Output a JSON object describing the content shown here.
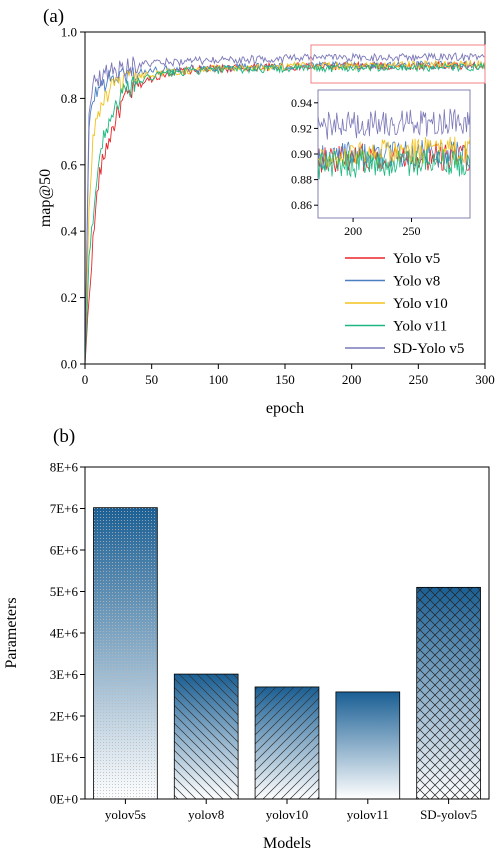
{
  "chart_data": [
    {
      "type": "line",
      "panel_label": "(a)",
      "xlabel": "epoch",
      "ylabel": "map@50",
      "xlim": [
        0,
        300
      ],
      "ylim": [
        0.0,
        1.0
      ],
      "x_ticks": [
        "0",
        "50",
        "100",
        "150",
        "200",
        "250",
        "300"
      ],
      "y_ticks": [
        "0.0",
        "0.2",
        "0.4",
        "0.6",
        "0.8",
        "1.0"
      ],
      "legend_position": "bottom-right",
      "series": [
        {
          "name": "Yolo v5",
          "color": "#e8262b",
          "x": [
            0,
            5,
            10,
            15,
            20,
            25,
            30,
            40,
            50,
            60,
            80,
            100,
            120,
            150,
            170,
            200,
            250,
            300
          ],
          "y": [
            0.0,
            0.32,
            0.55,
            0.64,
            0.7,
            0.76,
            0.8,
            0.84,
            0.86,
            0.875,
            0.885,
            0.89,
            0.893,
            0.895,
            0.896,
            0.897,
            0.898,
            0.898
          ]
        },
        {
          "name": "Yolo v8",
          "color": "#4a7fc1",
          "x": [
            0,
            3,
            6,
            10,
            15,
            20,
            30,
            40,
            50,
            60,
            80,
            100,
            120,
            150,
            170,
            200,
            250,
            300
          ],
          "y": [
            0.0,
            0.7,
            0.8,
            0.83,
            0.85,
            0.86,
            0.87,
            0.878,
            0.882,
            0.885,
            0.89,
            0.893,
            0.895,
            0.896,
            0.897,
            0.899,
            0.9,
            0.9
          ]
        },
        {
          "name": "Yolo v10",
          "color": "#f2c21b",
          "x": [
            0,
            3,
            6,
            10,
            15,
            20,
            30,
            40,
            50,
            60,
            80,
            100,
            120,
            150,
            170,
            200,
            250,
            300
          ],
          "y": [
            0.0,
            0.45,
            0.68,
            0.76,
            0.8,
            0.83,
            0.85,
            0.865,
            0.873,
            0.878,
            0.885,
            0.89,
            0.893,
            0.896,
            0.898,
            0.9,
            0.902,
            0.903
          ]
        },
        {
          "name": "Yolo v11",
          "color": "#1cb880",
          "x": [
            0,
            3,
            6,
            10,
            15,
            20,
            30,
            40,
            50,
            60,
            80,
            100,
            120,
            150,
            170,
            200,
            250,
            300
          ],
          "y": [
            0.0,
            0.3,
            0.45,
            0.6,
            0.7,
            0.76,
            0.82,
            0.85,
            0.865,
            0.875,
            0.882,
            0.886,
            0.888,
            0.89,
            0.891,
            0.892,
            0.893,
            0.893
          ]
        },
        {
          "name": "SD-Yolo v5",
          "color": "#7b78b8",
          "x": [
            0,
            3,
            6,
            10,
            15,
            20,
            30,
            40,
            50,
            60,
            80,
            100,
            120,
            150,
            170,
            200,
            250,
            300
          ],
          "y": [
            0.0,
            0.78,
            0.84,
            0.86,
            0.875,
            0.885,
            0.893,
            0.9,
            0.905,
            0.908,
            0.912,
            0.915,
            0.917,
            0.92,
            0.922,
            0.923,
            0.924,
            0.925
          ]
        }
      ],
      "inset": {
        "xlim": [
          170,
          300
        ],
        "ylim": [
          0.85,
          0.95
        ],
        "x_ticks": [
          "200",
          "250"
        ],
        "y_ticks": [
          "0.86",
          "0.88",
          "0.90",
          "0.92",
          "0.94"
        ]
      }
    },
    {
      "type": "bar",
      "panel_label": "(b)",
      "xlabel": "Models",
      "ylabel": "Parameters",
      "ylim": [
        0,
        8000000
      ],
      "y_ticks": [
        "0E+0",
        "1E+6",
        "2E+6",
        "3E+6",
        "4E+6",
        "5E+6",
        "6E+6",
        "7E+6",
        "8E+6"
      ],
      "categories": [
        "yolov5s",
        "yolov8",
        "yolov10",
        "yolov11",
        "SD-yolov5"
      ],
      "values": [
        7020000,
        3010000,
        2700000,
        2580000,
        5100000
      ],
      "patterns": [
        "dots",
        "back-diagonal",
        "forward-diagonal",
        "none",
        "crosshatch"
      ],
      "bar_color_top": "#1a5f94",
      "bar_color_bottom": "#ffffff"
    }
  ]
}
